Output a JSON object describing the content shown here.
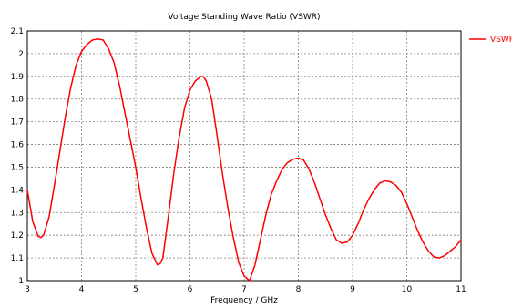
{
  "chart_data": {
    "type": "line",
    "title": "Voltage Standing Wave Ratio (VSWR)",
    "xlabel": "Frequency / GHz",
    "ylabel": "",
    "xlim": [
      3,
      11
    ],
    "ylim": [
      1,
      2.1
    ],
    "xticks": [
      "3",
      "4",
      "5",
      "6",
      "7",
      "8",
      "9",
      "10",
      "11"
    ],
    "yticks": [
      "1",
      "1.1",
      "1.2",
      "1.3",
      "1.4",
      "1.5",
      "1.6",
      "1.7",
      "1.8",
      "1.9",
      "2",
      "2.1"
    ],
    "grid": true,
    "legend_position": "top-right",
    "series": [
      {
        "name": "VSWR",
        "color": "#ff0000",
        "x": [
          3.0,
          3.1,
          3.2,
          3.25,
          3.3,
          3.4,
          3.5,
          3.6,
          3.7,
          3.8,
          3.9,
          4.0,
          4.1,
          4.2,
          4.3,
          4.4,
          4.5,
          4.6,
          4.7,
          4.8,
          4.9,
          5.0,
          5.1,
          5.2,
          5.3,
          5.4,
          5.45,
          5.5,
          5.6,
          5.7,
          5.8,
          5.9,
          6.0,
          6.1,
          6.2,
          6.25,
          6.3,
          6.4,
          6.5,
          6.6,
          6.7,
          6.8,
          6.9,
          7.0,
          7.1,
          7.2,
          7.3,
          7.4,
          7.5,
          7.6,
          7.7,
          7.8,
          7.9,
          8.0,
          8.1,
          8.2,
          8.3,
          8.4,
          8.5,
          8.6,
          8.7,
          8.8,
          8.9,
          9.0,
          9.1,
          9.2,
          9.3,
          9.4,
          9.5,
          9.6,
          9.7,
          9.8,
          9.9,
          10.0,
          10.1,
          10.2,
          10.3,
          10.4,
          10.5,
          10.6,
          10.7,
          10.8,
          10.9,
          11.0
        ],
        "y": [
          1.4,
          1.26,
          1.195,
          1.19,
          1.2,
          1.28,
          1.42,
          1.57,
          1.72,
          1.85,
          1.95,
          2.01,
          2.04,
          2.06,
          2.065,
          2.06,
          2.02,
          1.96,
          1.86,
          1.74,
          1.62,
          1.5,
          1.36,
          1.23,
          1.12,
          1.07,
          1.075,
          1.1,
          1.28,
          1.47,
          1.63,
          1.76,
          1.84,
          1.88,
          1.9,
          1.898,
          1.88,
          1.8,
          1.64,
          1.47,
          1.32,
          1.19,
          1.08,
          1.02,
          1.0,
          1.07,
          1.18,
          1.29,
          1.38,
          1.44,
          1.49,
          1.52,
          1.535,
          1.54,
          1.53,
          1.49,
          1.43,
          1.36,
          1.29,
          1.23,
          1.18,
          1.165,
          1.17,
          1.2,
          1.25,
          1.31,
          1.36,
          1.4,
          1.43,
          1.44,
          1.435,
          1.42,
          1.39,
          1.34,
          1.28,
          1.22,
          1.17,
          1.13,
          1.105,
          1.1,
          1.11,
          1.13,
          1.15,
          1.18
        ]
      }
    ]
  }
}
